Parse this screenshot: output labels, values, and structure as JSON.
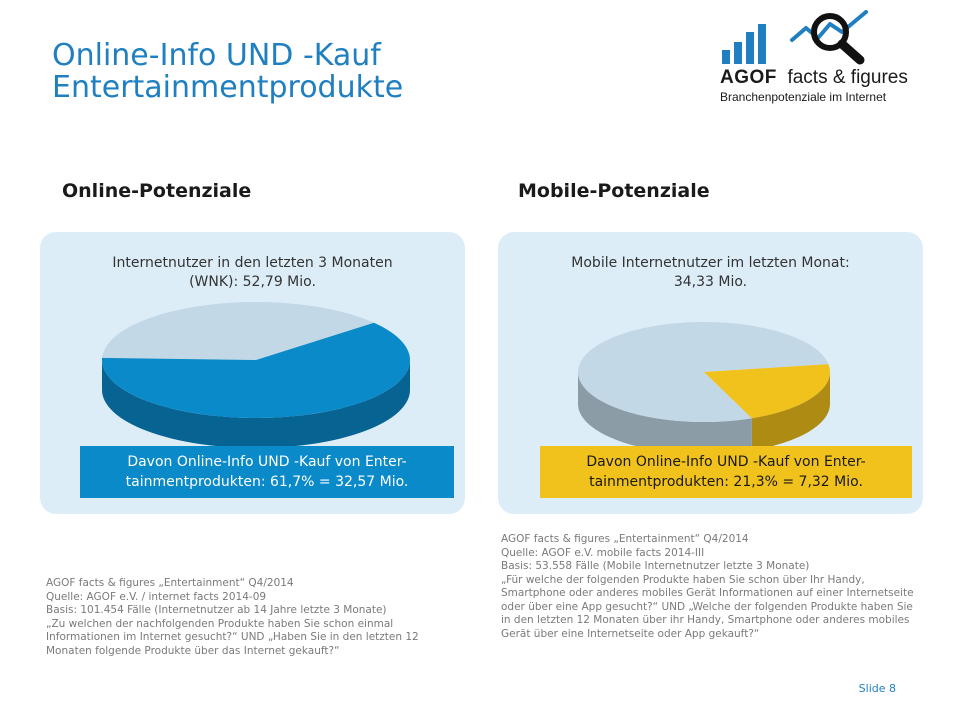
{
  "header": {
    "title_line1": "Online-Info UND -Kauf",
    "title_line2": "Entertainmentprodukte",
    "logo_brand": "AGOF",
    "logo_tagline": "facts & figures",
    "logo_sub": "Branchenpotenziale im Internet"
  },
  "online": {
    "heading": "Online-Potenziale",
    "stat_line1": "Internetnutzer in den letzten 3 Monaten",
    "stat_line2": "(WNK): 52,79 Mio.",
    "result_line1": "Davon Online-Info UND -Kauf von Enter-",
    "result_line2": "tainmentprodukten: 61,7% = 32,57 Mio.",
    "share": 0.617,
    "color_share": "#0a8ac9",
    "color_rest": "#c2d8e6",
    "source": "AGOF facts & figures „Entertainment“ Q4/2014\nQuelle: AGOF e.V. / internet facts 2014-09\nBasis: 101.454 Fälle (Internetnutzer ab 14 Jahre letzte 3 Monate)\n„Zu welchen der nachfolgenden Produkte haben Sie schon einmal Informationen im Internet gesucht?“ UND „Haben Sie in den letzten 12 Monaten folgende Produkte über das Internet gekauft?“"
  },
  "mobile": {
    "heading": "Mobile-Potenziale",
    "stat_line1": "Mobile Internetnutzer im letzten Monat:",
    "stat_line2": "34,33 Mio.",
    "result_line1": "Davon Online-Info UND -Kauf von Enter-",
    "result_line2": "tainmentprodukten: 21,3% = 7,32 Mio.",
    "share": 0.213,
    "color_share": "#f1c21b",
    "color_rest": "#c2d8e6",
    "source": "AGOF facts & figures „Entertainment“ Q4/2014\nQuelle: AGOF e.V. mobile facts 2014-III\nBasis: 53.558 Fälle (Mobile Internetnutzer letzte 3 Monate)\n„Für welche der folgenden Produkte haben Sie schon über Ihr Handy, Smartphone oder anderes mobiles Gerät Informationen auf einer Internetseite oder über eine App gesucht?“ UND „Welche der folgenden Produkte haben Sie in den letzten 12 Monaten über ihr Handy, Smartphone oder anderes mobiles Gerät über eine Internetseite oder App gekauft?“"
  },
  "footer": {
    "slide_label": "Slide 8"
  }
}
